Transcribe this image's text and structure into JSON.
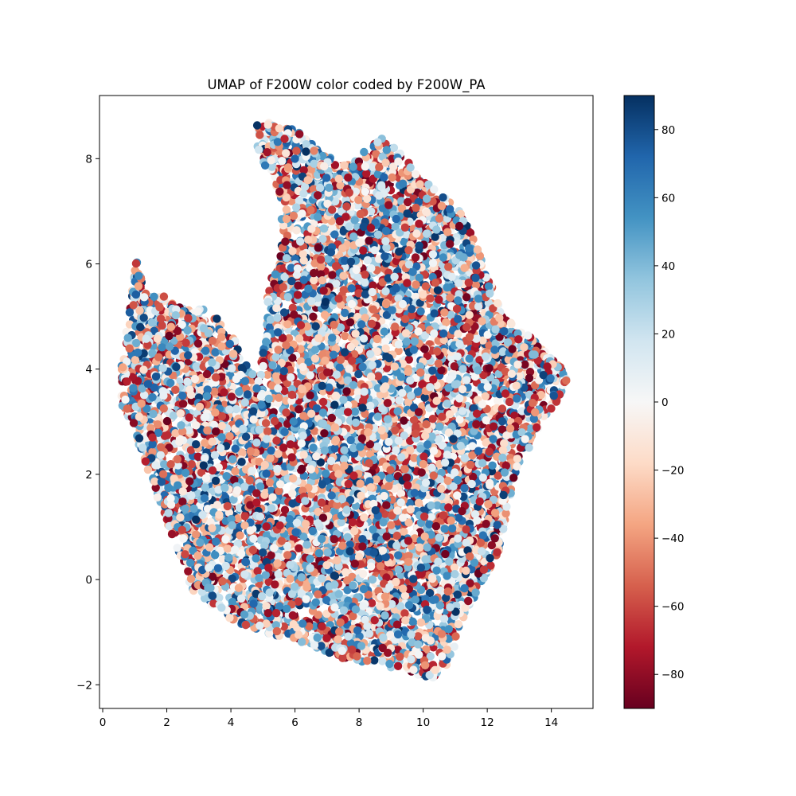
{
  "chart_data": {
    "type": "scatter",
    "title": "UMAP of F200W color coded by F200W_PA",
    "xlabel": "",
    "ylabel": "",
    "xlim": [
      -0.1,
      15.3
    ],
    "ylim": [
      -2.45,
      9.2
    ],
    "x_ticks": [
      0,
      2,
      4,
      6,
      8,
      10,
      12,
      14
    ],
    "y_ticks": [
      -2,
      0,
      2,
      4,
      6,
      8
    ],
    "x_tick_labels": [
      "0",
      "2",
      "4",
      "6",
      "8",
      "10",
      "12",
      "14"
    ],
    "y_tick_labels": [
      "−2",
      "0",
      "2",
      "4",
      "6",
      "8"
    ],
    "colorbar": {
      "colormap": "RdBu",
      "vmin": -90,
      "vmax": 90,
      "ticks": [
        -80,
        -60,
        -40,
        -20,
        0,
        20,
        40,
        60,
        80
      ],
      "tick_labels": [
        "−80",
        "−60",
        "−40",
        "−20",
        "0",
        "20",
        "40",
        "60",
        "80"
      ],
      "label": ""
    },
    "grid": false,
    "point_cloud": {
      "approx_points": 9000,
      "boundary": [
        [
          0.55,
          3.9
        ],
        [
          0.7,
          4.6
        ],
        [
          0.9,
          5.6
        ],
        [
          1.05,
          6.1
        ],
        [
          1.3,
          5.6
        ],
        [
          1.8,
          5.45
        ],
        [
          2.5,
          5.15
        ],
        [
          3.3,
          5.15
        ],
        [
          3.8,
          4.95
        ],
        [
          4.3,
          4.4
        ],
        [
          4.8,
          3.8
        ],
        [
          5.1,
          4.6
        ],
        [
          5.1,
          5.4
        ],
        [
          5.5,
          6.2
        ],
        [
          5.6,
          7.2
        ],
        [
          5.1,
          7.8
        ],
        [
          4.6,
          8.6
        ],
        [
          5.2,
          8.7
        ],
        [
          6.2,
          8.5
        ],
        [
          6.8,
          8.1
        ],
        [
          7.6,
          7.9
        ],
        [
          8.2,
          8.15
        ],
        [
          8.8,
          8.45
        ],
        [
          9.3,
          8.1
        ],
        [
          10.0,
          7.6
        ],
        [
          10.6,
          7.35
        ],
        [
          11.3,
          6.9
        ],
        [
          11.7,
          6.3
        ],
        [
          12.0,
          5.8
        ],
        [
          12.5,
          5.0
        ],
        [
          13.4,
          4.6
        ],
        [
          13.9,
          4.3
        ],
        [
          14.55,
          3.85
        ],
        [
          14.2,
          3.4
        ],
        [
          13.7,
          3.0
        ],
        [
          13.3,
          2.5
        ],
        [
          12.9,
          2.0
        ],
        [
          12.6,
          1.3
        ],
        [
          12.4,
          0.6
        ],
        [
          11.9,
          0.0
        ],
        [
          11.3,
          -0.7
        ],
        [
          10.9,
          -1.5
        ],
        [
          10.4,
          -1.9
        ],
        [
          9.5,
          -1.75
        ],
        [
          8.5,
          -1.6
        ],
        [
          7.5,
          -1.5
        ],
        [
          6.3,
          -1.2
        ],
        [
          5.0,
          -1.0
        ],
        [
          4.1,
          -0.8
        ],
        [
          3.3,
          -0.5
        ],
        [
          2.8,
          -0.2
        ],
        [
          2.2,
          0.8
        ],
        [
          1.6,
          1.7
        ],
        [
          1.0,
          2.8
        ],
        [
          0.6,
          3.3
        ]
      ]
    }
  }
}
